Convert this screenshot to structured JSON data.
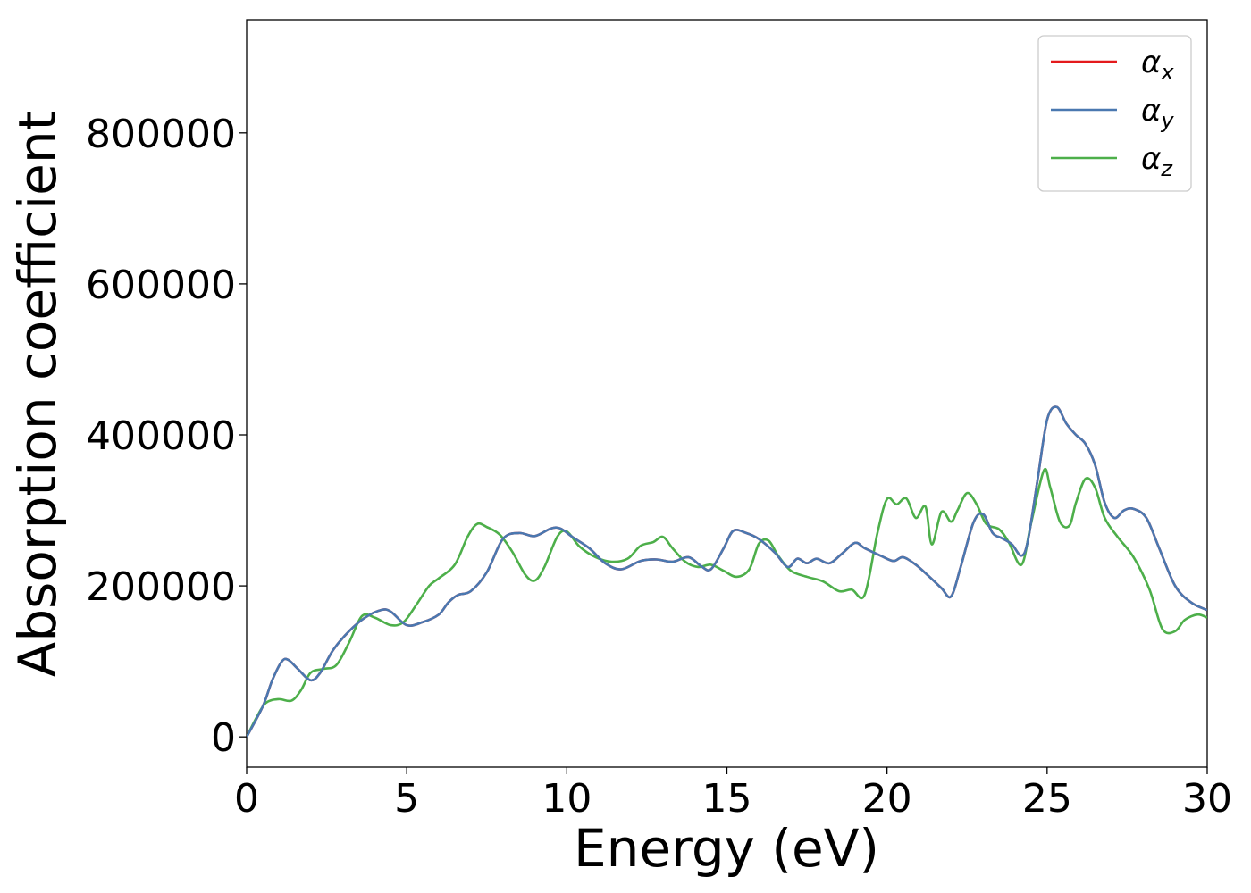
{
  "chart_data": {
    "type": "line",
    "title": "",
    "xlabel": "Energy (eV)",
    "ylabel": "Absorption coefficient",
    "xlim": [
      0,
      30
    ],
    "ylim": [
      -40000,
      950000
    ],
    "xticks": [
      "0",
      "5",
      "10",
      "15",
      "20",
      "25",
      "30"
    ],
    "yticks": [
      "0",
      "200000",
      "400000",
      "600000",
      "800000"
    ],
    "grid": false,
    "legend_position": "top-right",
    "colors": {
      "alpha_x": "#e41a1c",
      "alpha_y": "#4a78b0",
      "alpha_z": "#4daf4a"
    },
    "legend": [
      {
        "symbol": "α",
        "sub": "x"
      },
      {
        "symbol": "α",
        "sub": "y"
      },
      {
        "symbol": "α",
        "sub": "z"
      }
    ],
    "series": [
      {
        "key": "alpha_x",
        "x": [
          0,
          0.5,
          0.8,
          1.1,
          1.3,
          1.6,
          2.0,
          2.3,
          2.7,
          3.2,
          3.7,
          4.2,
          4.5,
          5.0,
          5.5,
          6.0,
          6.3,
          6.6,
          7.0,
          7.5,
          8.0,
          8.5,
          9.0,
          9.5,
          9.8,
          10.2,
          10.7,
          11.2,
          11.7,
          12.3,
          12.8,
          13.3,
          13.8,
          14.2,
          14.5,
          14.9,
          15.2,
          15.6,
          16.0,
          16.5,
          16.9,
          17.2,
          17.5,
          17.8,
          18.2,
          18.6,
          19.0,
          19.3,
          19.8,
          20.2,
          20.5,
          20.9,
          21.3,
          21.7,
          22.0,
          22.3,
          22.7,
          23.0,
          23.3,
          23.6,
          23.9,
          24.2,
          24.4,
          24.7,
          25.0,
          25.3,
          25.6,
          25.9,
          26.2,
          26.5,
          26.8,
          27.1,
          27.4,
          27.7,
          28.1,
          28.5,
          29.0,
          29.5,
          30.0
        ],
        "y": [
          0,
          40000,
          75000,
          100000,
          102000,
          90000,
          75000,
          85000,
          115000,
          140000,
          158000,
          168000,
          166000,
          148000,
          152000,
          162000,
          178000,
          188000,
          193000,
          218000,
          262000,
          270000,
          266000,
          276000,
          276000,
          264000,
          250000,
          230000,
          222000,
          233000,
          235000,
          232000,
          238000,
          226000,
          222000,
          250000,
          273000,
          270000,
          262000,
          244000,
          225000,
          236000,
          230000,
          236000,
          230000,
          243000,
          257000,
          250000,
          240000,
          233000,
          238000,
          228000,
          213000,
          197000,
          186000,
          225000,
          284000,
          295000,
          270000,
          263000,
          255000,
          240000,
          260000,
          340000,
          420000,
          437000,
          415000,
          400000,
          388000,
          360000,
          310000,
          290000,
          300000,
          302000,
          290000,
          250000,
          200000,
          178000,
          168000
        ]
      },
      {
        "key": "alpha_y",
        "x": [
          0,
          0.5,
          0.8,
          1.1,
          1.3,
          1.6,
          2.0,
          2.3,
          2.7,
          3.2,
          3.7,
          4.2,
          4.5,
          5.0,
          5.5,
          6.0,
          6.3,
          6.6,
          7.0,
          7.5,
          8.0,
          8.5,
          9.0,
          9.5,
          9.8,
          10.2,
          10.7,
          11.2,
          11.7,
          12.3,
          12.8,
          13.3,
          13.8,
          14.2,
          14.5,
          14.9,
          15.2,
          15.6,
          16.0,
          16.5,
          16.9,
          17.2,
          17.5,
          17.8,
          18.2,
          18.6,
          19.0,
          19.3,
          19.8,
          20.2,
          20.5,
          20.9,
          21.3,
          21.7,
          22.0,
          22.3,
          22.7,
          23.0,
          23.3,
          23.6,
          23.9,
          24.2,
          24.4,
          24.7,
          25.0,
          25.3,
          25.6,
          25.9,
          26.2,
          26.5,
          26.8,
          27.1,
          27.4,
          27.7,
          28.1,
          28.5,
          29.0,
          29.5,
          30.0
        ],
        "y": [
          0,
          40000,
          75000,
          100000,
          102000,
          90000,
          75000,
          85000,
          115000,
          140000,
          158000,
          168000,
          166000,
          148000,
          152000,
          162000,
          178000,
          188000,
          193000,
          218000,
          262000,
          270000,
          266000,
          276000,
          276000,
          264000,
          250000,
          230000,
          222000,
          233000,
          235000,
          232000,
          238000,
          226000,
          222000,
          250000,
          273000,
          270000,
          262000,
          244000,
          225000,
          236000,
          230000,
          236000,
          230000,
          243000,
          257000,
          250000,
          240000,
          233000,
          238000,
          228000,
          213000,
          197000,
          186000,
          225000,
          284000,
          295000,
          270000,
          263000,
          255000,
          240000,
          260000,
          340000,
          420000,
          437000,
          415000,
          400000,
          388000,
          360000,
          310000,
          290000,
          300000,
          302000,
          290000,
          250000,
          200000,
          178000,
          168000
        ]
      },
      {
        "key": "alpha_z",
        "x": [
          0,
          0.3,
          0.6,
          1.0,
          1.4,
          1.7,
          2.0,
          2.4,
          2.8,
          3.2,
          3.6,
          4.0,
          4.5,
          4.9,
          5.3,
          5.7,
          6.0,
          6.5,
          6.9,
          7.2,
          7.5,
          7.9,
          8.3,
          8.7,
          9.0,
          9.3,
          9.7,
          10.0,
          10.4,
          10.9,
          11.4,
          11.9,
          12.3,
          12.7,
          13.0,
          13.3,
          13.7,
          14.1,
          14.5,
          14.9,
          15.3,
          15.7,
          16.0,
          16.3,
          16.6,
          17.0,
          17.5,
          18.0,
          18.5,
          18.9,
          19.3,
          19.7,
          20.0,
          20.3,
          20.6,
          20.9,
          21.2,
          21.4,
          21.7,
          22.0,
          22.2,
          22.5,
          22.8,
          23.1,
          23.5,
          23.8,
          24.2,
          24.5,
          24.9,
          25.1,
          25.4,
          25.7,
          25.9,
          26.2,
          26.5,
          26.8,
          27.2,
          27.7,
          28.2,
          28.6,
          29.0,
          29.3,
          29.7,
          30.0
        ],
        "y": [
          0,
          25000,
          45000,
          50000,
          48000,
          62000,
          85000,
          90000,
          95000,
          125000,
          160000,
          158000,
          148000,
          152000,
          175000,
          200000,
          210000,
          228000,
          265000,
          282000,
          278000,
          268000,
          245000,
          215000,
          207000,
          225000,
          265000,
          272000,
          252000,
          238000,
          232000,
          236000,
          253000,
          258000,
          265000,
          250000,
          232000,
          225000,
          228000,
          220000,
          212000,
          222000,
          256000,
          260000,
          240000,
          220000,
          212000,
          206000,
          193000,
          195000,
          188000,
          270000,
          315000,
          308000,
          316000,
          290000,
          305000,
          255000,
          298000,
          285000,
          300000,
          323000,
          308000,
          282000,
          275000,
          258000,
          228000,
          283000,
          353000,
          330000,
          285000,
          280000,
          310000,
          342000,
          330000,
          290000,
          265000,
          238000,
          195000,
          143000,
          140000,
          155000,
          162000,
          158000
        ]
      }
    ]
  }
}
